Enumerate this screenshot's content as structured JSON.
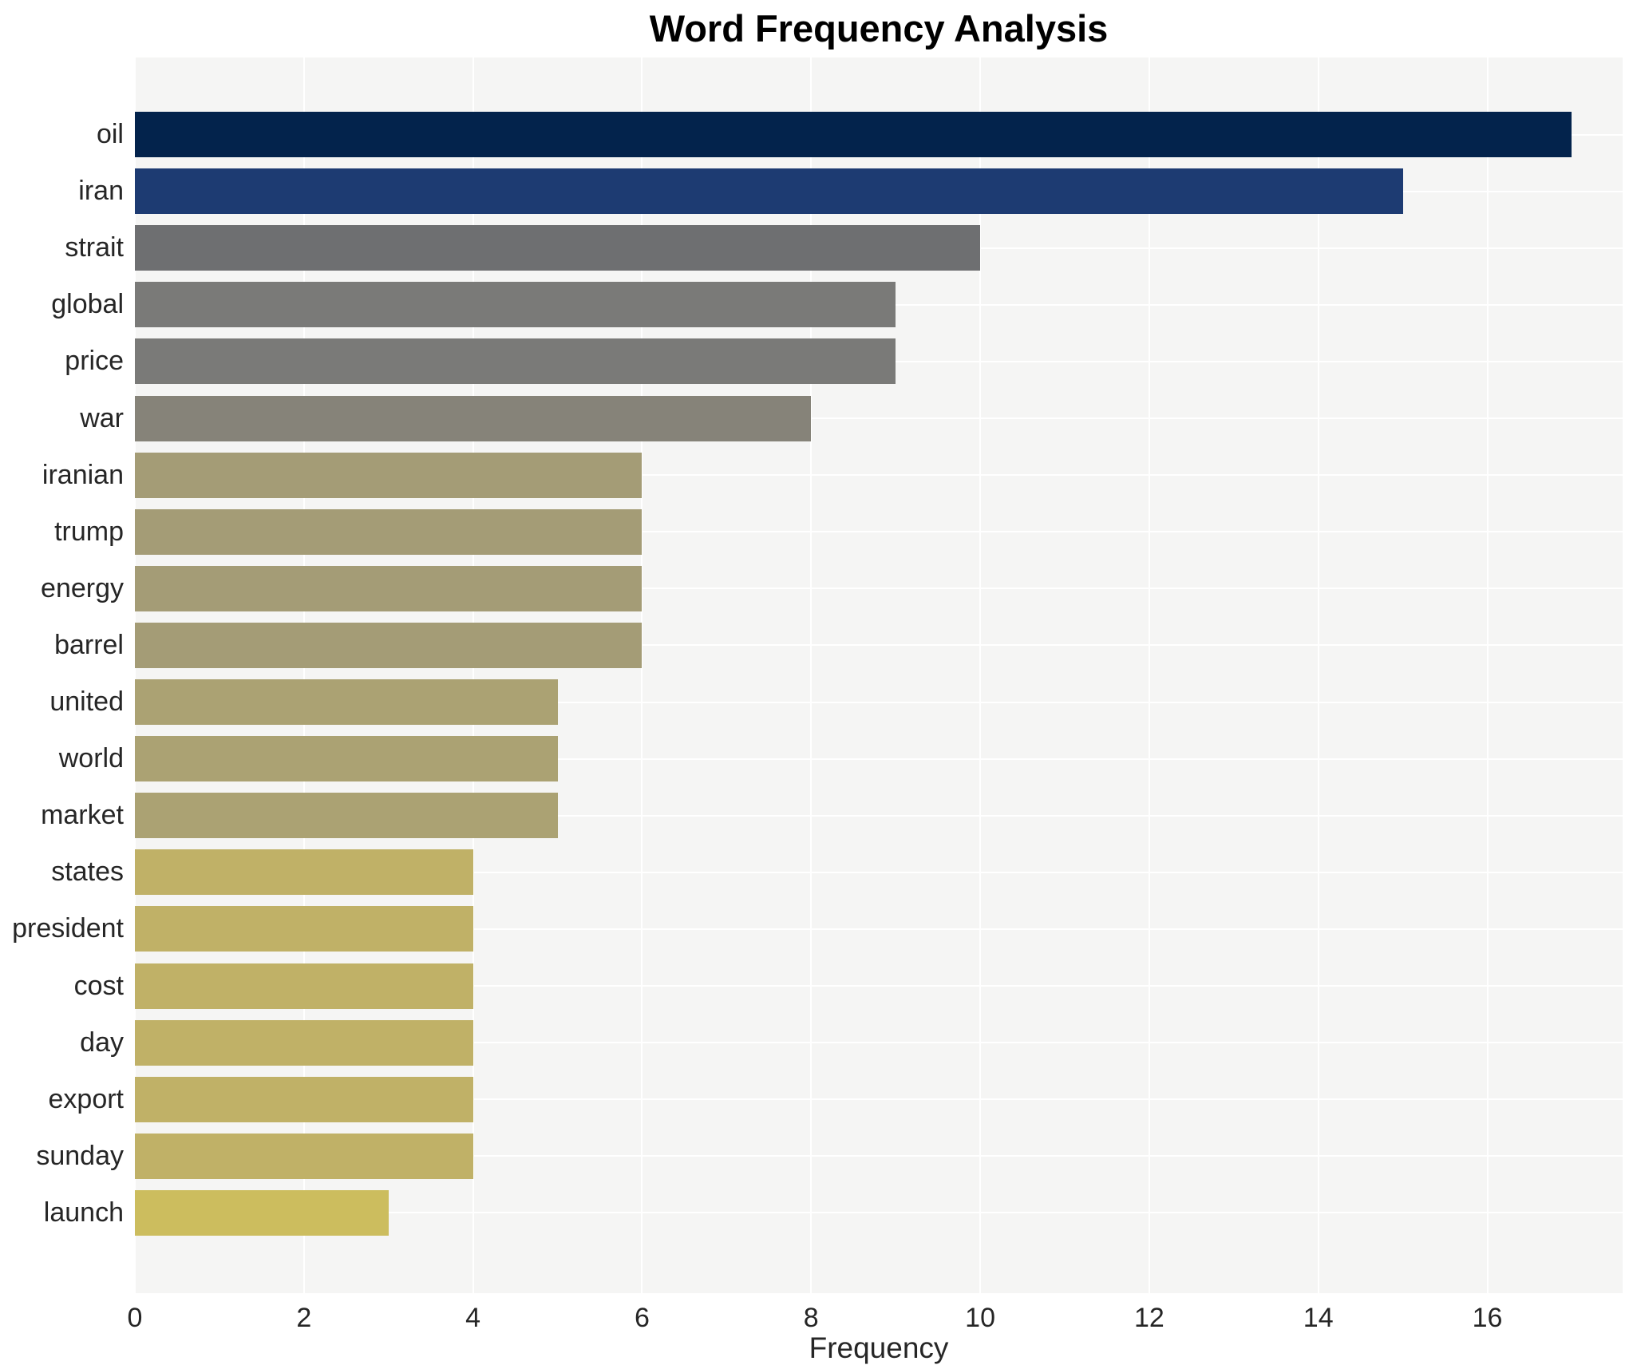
{
  "chart_data": {
    "type": "bar",
    "orientation": "horizontal",
    "title": "Word Frequency Analysis",
    "xlabel": "Frequency",
    "ylabel": "",
    "categories": [
      "oil",
      "iran",
      "strait",
      "global",
      "price",
      "war",
      "iranian",
      "trump",
      "energy",
      "barrel",
      "united",
      "world",
      "market",
      "states",
      "president",
      "cost",
      "day",
      "export",
      "sunday",
      "launch"
    ],
    "values": [
      17,
      15,
      10,
      9,
      9,
      8,
      6,
      6,
      6,
      6,
      5,
      5,
      5,
      4,
      4,
      4,
      4,
      4,
      4,
      3
    ],
    "bar_colors": [
      "#03234c",
      "#1d3b72",
      "#6e6f71",
      "#7a7a78",
      "#7a7a78",
      "#868379",
      "#a49c76",
      "#a49c76",
      "#a49c76",
      "#a49c76",
      "#aba273",
      "#aba273",
      "#aba273",
      "#c0b167",
      "#c0b167",
      "#c0b167",
      "#c0b167",
      "#c0b167",
      "#c0b167",
      "#ccbd5e"
    ],
    "x_ticks": [
      0,
      2,
      4,
      6,
      8,
      10,
      12,
      14,
      16
    ],
    "xlim": [
      0,
      17.6
    ],
    "grid": "white gridlines on light panel, both axes, drawn under bars",
    "legend": "none",
    "colormap": "cividis (value-mapped: high=dark navy, low=gold)"
  },
  "style_colors": {
    "page_background": "#ffffff",
    "panel_background": "#f5f5f4",
    "gridline": "#ffffff",
    "title_text": "#000000",
    "tick_text": "#262626"
  }
}
